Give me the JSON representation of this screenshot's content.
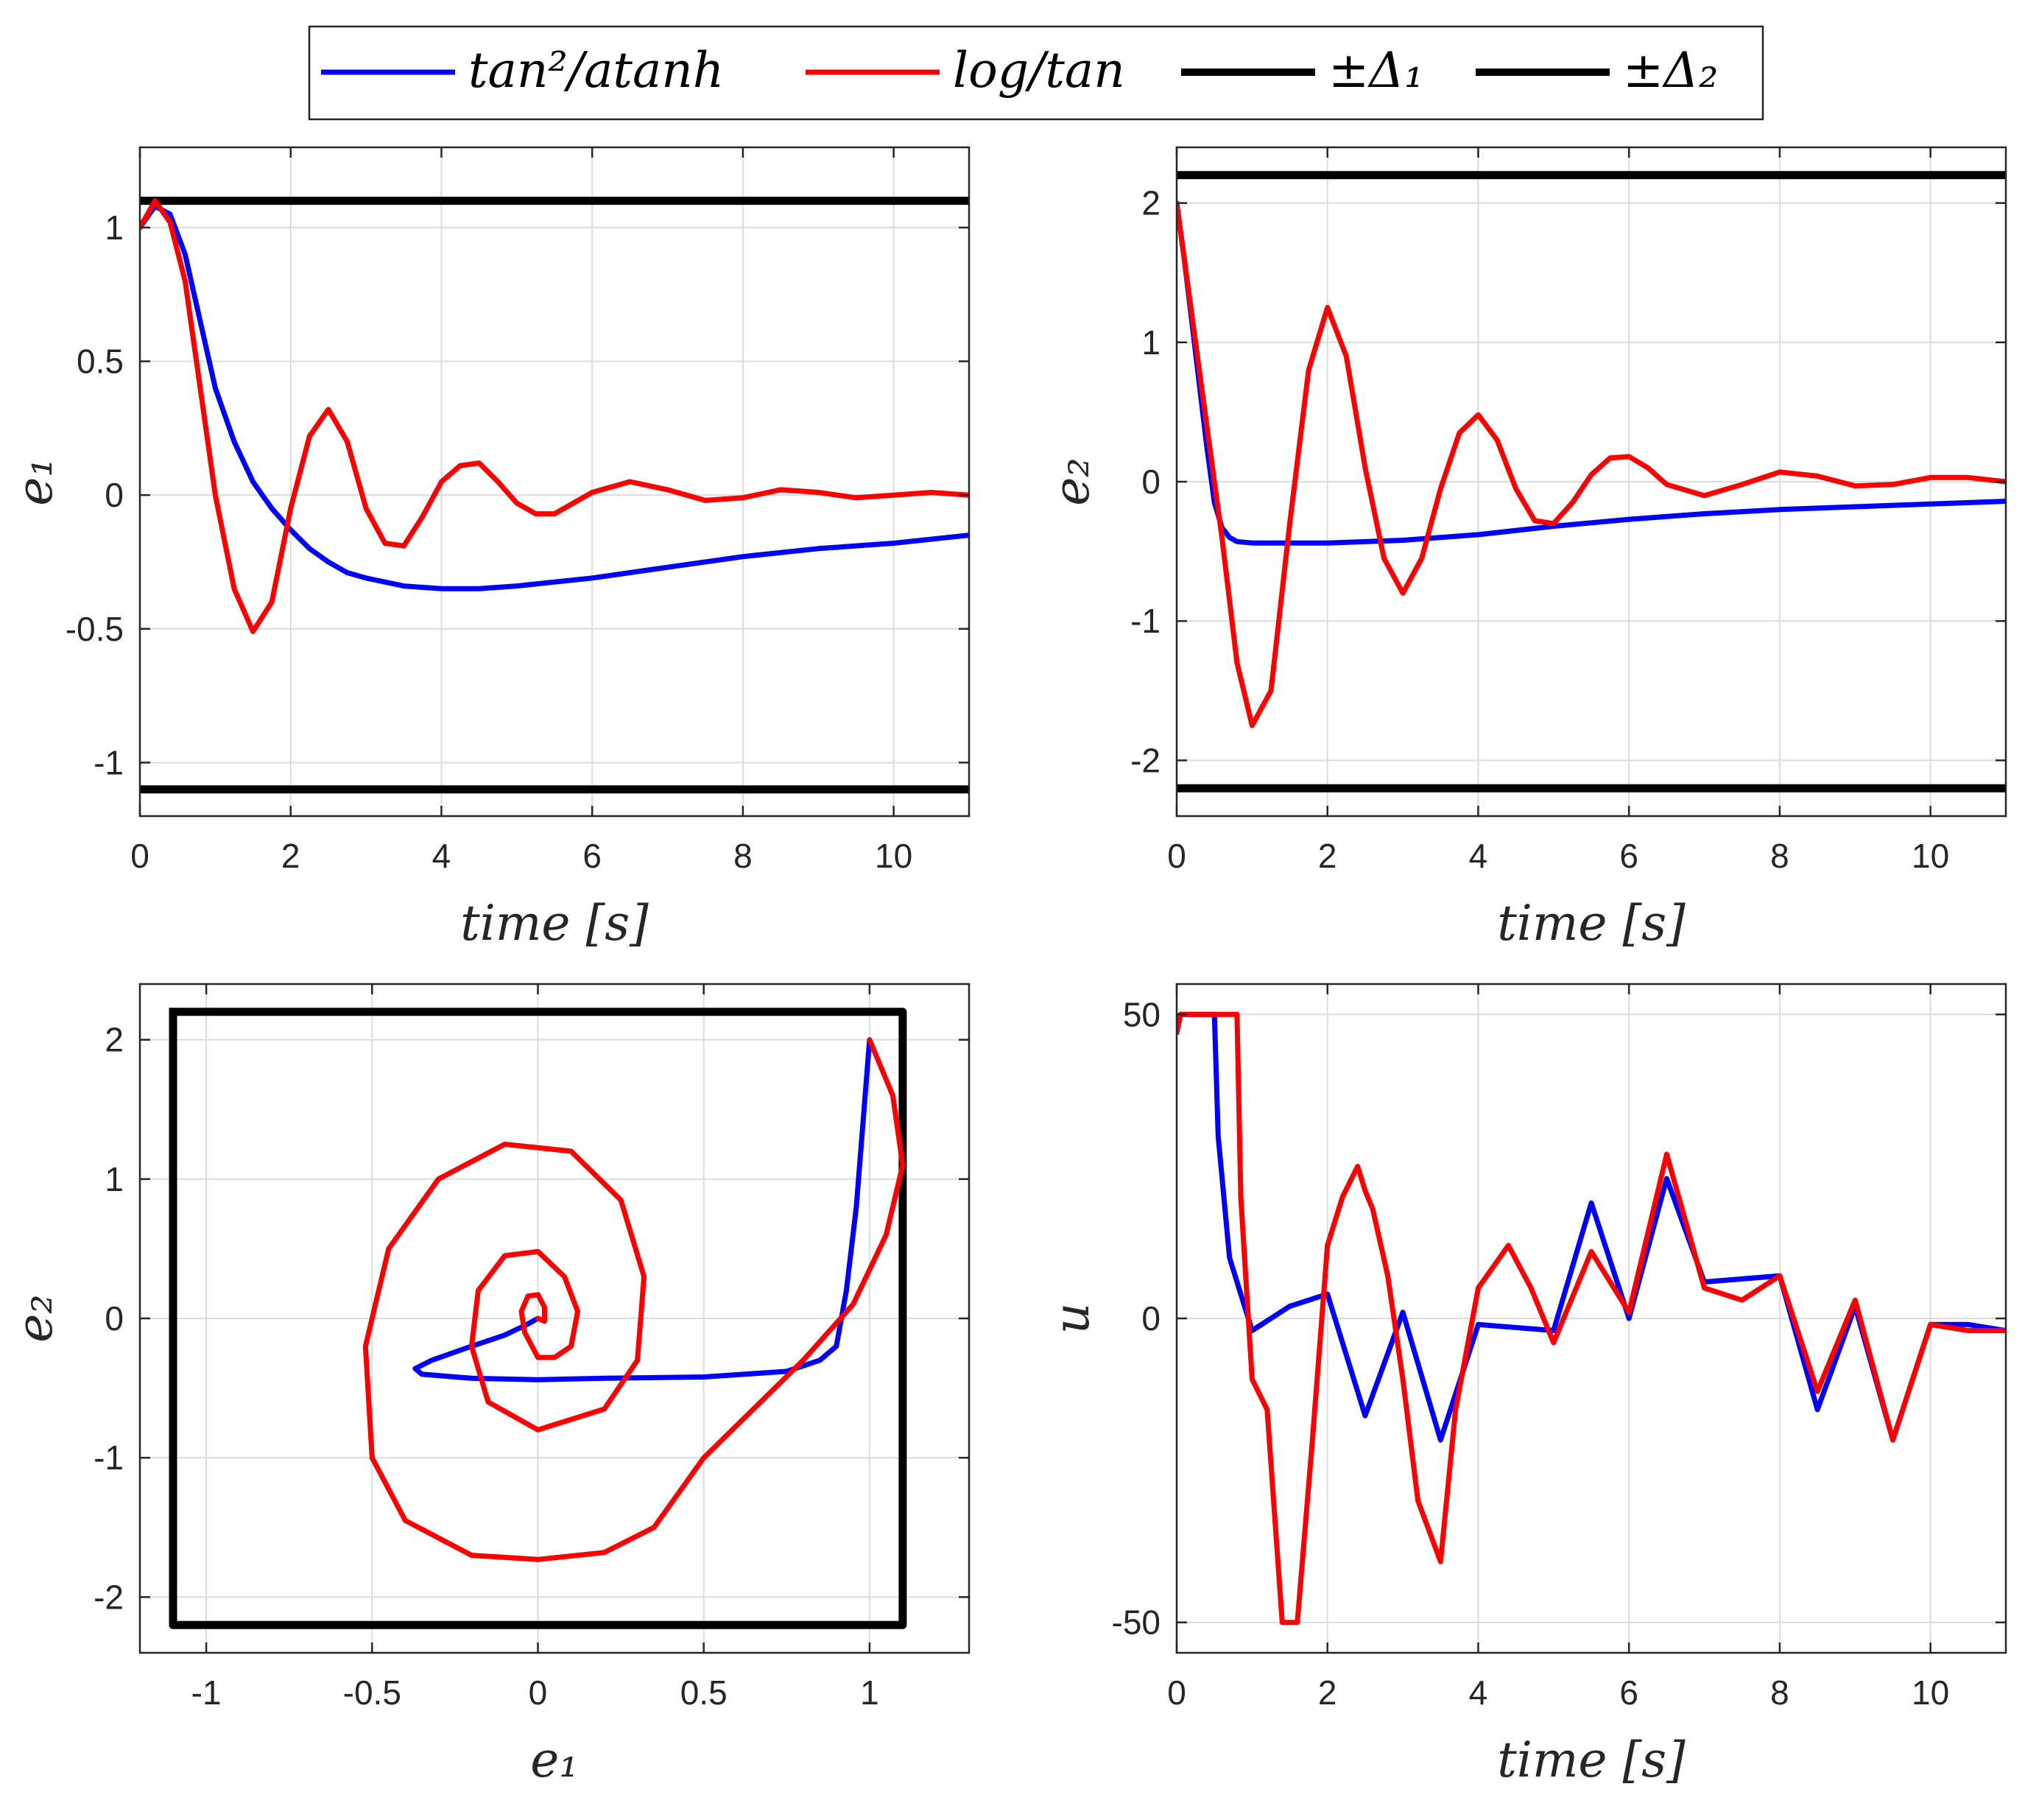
{
  "colors": {
    "blue": "#0000ff",
    "red": "#ff0000",
    "black": "#000000"
  },
  "legend": {
    "entries": [
      {
        "label": "tan²/atanh",
        "color": "#0000ff"
      },
      {
        "label": "log/tan",
        "color": "#ff0000"
      },
      {
        "label": "±Δ₁",
        "color": "#000000"
      },
      {
        "label": "±Δ₂",
        "color": "#000000"
      }
    ]
  },
  "chart_data": [
    {
      "id": "e1",
      "type": "line",
      "xlabel": "time [s]",
      "ylabel": "e₁",
      "xlim": [
        0,
        11
      ],
      "ylim": [
        -1.2,
        1.3
      ],
      "xticks": [
        0,
        2,
        4,
        6,
        8,
        10
      ],
      "yticks": [
        -1,
        -0.5,
        0,
        0.5,
        1
      ],
      "grid": true,
      "series": [
        {
          "name": "bound +Δ₁",
          "color": "#000000",
          "x": [
            0,
            11
          ],
          "y": [
            1.1,
            1.1
          ]
        },
        {
          "name": "bound −Δ₁",
          "color": "#000000",
          "x": [
            0,
            11
          ],
          "y": [
            -1.1,
            -1.1
          ]
        },
        {
          "name": "tan²/atanh",
          "color": "#0000ff",
          "x": [
            0,
            0.2,
            0.4,
            0.6,
            0.8,
            1.0,
            1.25,
            1.5,
            1.75,
            2.0,
            2.25,
            2.5,
            2.75,
            3.0,
            3.5,
            4.0,
            4.5,
            5.0,
            6.0,
            7.0,
            8.0,
            9.0,
            10.0,
            11.0
          ],
          "y": [
            1.0,
            1.08,
            1.05,
            0.9,
            0.65,
            0.4,
            0.2,
            0.05,
            -0.05,
            -0.13,
            -0.2,
            -0.25,
            -0.29,
            -0.31,
            -0.34,
            -0.35,
            -0.35,
            -0.34,
            -0.31,
            -0.27,
            -0.23,
            -0.2,
            -0.18,
            -0.15
          ]
        },
        {
          "name": "log/tan",
          "color": "#ff0000",
          "x": [
            0,
            0.2,
            0.4,
            0.6,
            0.8,
            1.0,
            1.25,
            1.5,
            1.75,
            2.0,
            2.25,
            2.5,
            2.75,
            3.0,
            3.25,
            3.5,
            3.75,
            4.0,
            4.25,
            4.5,
            4.75,
            5.0,
            5.25,
            5.5,
            5.75,
            6.0,
            6.5,
            7.0,
            7.5,
            8.0,
            8.5,
            9.0,
            9.5,
            10.0,
            10.5,
            11.0
          ],
          "y": [
            1.0,
            1.1,
            1.02,
            0.8,
            0.4,
            0.0,
            -0.35,
            -0.51,
            -0.4,
            -0.05,
            0.22,
            0.32,
            0.2,
            -0.05,
            -0.18,
            -0.19,
            -0.08,
            0.05,
            0.11,
            0.12,
            0.05,
            -0.03,
            -0.07,
            -0.07,
            -0.03,
            0.01,
            0.05,
            0.02,
            -0.02,
            -0.01,
            0.02,
            0.01,
            -0.01,
            0.0,
            0.01,
            0.0
          ]
        }
      ]
    },
    {
      "id": "e2",
      "type": "line",
      "xlabel": "time [s]",
      "ylabel": "e₂",
      "xlim": [
        0,
        11
      ],
      "ylim": [
        -2.4,
        2.4
      ],
      "xticks": [
        0,
        2,
        4,
        6,
        8,
        10
      ],
      "yticks": [
        -2,
        -1,
        0,
        1,
        2
      ],
      "grid": true,
      "series": [
        {
          "name": "bound +Δ₂",
          "color": "#000000",
          "x": [
            0,
            11
          ],
          "y": [
            2.2,
            2.2
          ]
        },
        {
          "name": "bound −Δ₂",
          "color": "#000000",
          "x": [
            0,
            11
          ],
          "y": [
            -2.2,
            -2.2
          ]
        },
        {
          "name": "tan²/atanh",
          "color": "#0000ff",
          "x": [
            0,
            0.1,
            0.2,
            0.3,
            0.4,
            0.5,
            0.6,
            0.7,
            0.8,
            1.0,
            1.5,
            2.0,
            3.0,
            4.0,
            5.0,
            6.0,
            7.0,
            8.0,
            9.0,
            10.0,
            11.0
          ],
          "y": [
            2.0,
            1.6,
            1.15,
            0.7,
            0.25,
            -0.15,
            -0.33,
            -0.4,
            -0.43,
            -0.44,
            -0.44,
            -0.44,
            -0.42,
            -0.38,
            -0.32,
            -0.27,
            -0.23,
            -0.2,
            -0.18,
            -0.16,
            -0.14
          ]
        },
        {
          "name": "log/tan",
          "color": "#ff0000",
          "x": [
            0,
            0.2,
            0.4,
            0.6,
            0.8,
            1.0,
            1.25,
            1.5,
            1.75,
            2.0,
            2.25,
            2.5,
            2.75,
            3.0,
            3.25,
            3.5,
            3.75,
            4.0,
            4.25,
            4.5,
            4.75,
            5.0,
            5.25,
            5.5,
            5.75,
            6.0,
            6.25,
            6.5,
            7.0,
            7.5,
            8.0,
            8.5,
            9.0,
            9.5,
            10.0,
            10.5,
            11.0
          ],
          "y": [
            2.0,
            1.2,
            0.4,
            -0.4,
            -1.3,
            -1.75,
            -1.5,
            -0.3,
            0.8,
            1.25,
            0.9,
            0.1,
            -0.55,
            -0.8,
            -0.55,
            -0.05,
            0.35,
            0.48,
            0.3,
            -0.05,
            -0.28,
            -0.3,
            -0.15,
            0.05,
            0.17,
            0.18,
            0.1,
            -0.02,
            -0.1,
            -0.02,
            0.07,
            0.04,
            -0.03,
            -0.02,
            0.03,
            0.03,
            0.0
          ]
        }
      ]
    },
    {
      "id": "phase",
      "type": "line",
      "xlabel": "e₁",
      "ylabel": "e₂",
      "xlim": [
        -1.2,
        1.3
      ],
      "ylim": [
        -2.4,
        2.4
      ],
      "xticks": [
        -1,
        -0.5,
        0,
        0.5,
        1
      ],
      "yticks": [
        -2,
        -1,
        0,
        1,
        2
      ],
      "grid": true,
      "series": [
        {
          "name": "bound box",
          "color": "#000000",
          "x": [
            -1.1,
            1.1,
            1.1,
            -1.1,
            -1.1
          ],
          "y": [
            2.2,
            2.2,
            -2.2,
            -2.2,
            2.2
          ]
        },
        {
          "name": "tan²/atanh",
          "color": "#0000ff",
          "x": [
            1.0,
            0.98,
            0.96,
            0.93,
            0.9,
            0.85,
            0.75,
            0.5,
            0.2,
            0.0,
            -0.2,
            -0.35,
            -0.37,
            -0.32,
            -0.2,
            -0.1,
            -0.03,
            0.0
          ],
          "y": [
            2.0,
            1.4,
            0.8,
            0.2,
            -0.2,
            -0.3,
            -0.38,
            -0.42,
            -0.43,
            -0.44,
            -0.43,
            -0.4,
            -0.36,
            -0.3,
            -0.2,
            -0.12,
            -0.04,
            0.0
          ]
        },
        {
          "name": "log/tan",
          "color": "#ff0000",
          "x": [
            1.0,
            1.07,
            1.1,
            1.05,
            0.95,
            0.8,
            0.5,
            0.35,
            0.2,
            0.0,
            -0.2,
            -0.4,
            -0.5,
            -0.52,
            -0.45,
            -0.3,
            -0.1,
            0.1,
            0.25,
            0.32,
            0.3,
            0.2,
            0.0,
            -0.15,
            -0.2,
            -0.18,
            -0.1,
            0.0,
            0.08,
            0.12,
            0.1,
            0.05,
            0.0,
            -0.04,
            -0.05,
            -0.03,
            0.0,
            0.02,
            0.02,
            0.0
          ],
          "y": [
            2.0,
            1.6,
            1.1,
            0.6,
            0.1,
            -0.3,
            -1.0,
            -1.5,
            -1.68,
            -1.73,
            -1.7,
            -1.45,
            -1.0,
            -0.2,
            0.5,
            1.0,
            1.25,
            1.2,
            0.85,
            0.3,
            -0.3,
            -0.65,
            -0.8,
            -0.6,
            -0.2,
            0.2,
            0.45,
            0.48,
            0.3,
            0.05,
            -0.2,
            -0.28,
            -0.28,
            -0.1,
            0.05,
            0.16,
            0.17,
            0.08,
            -0.02,
            0.0
          ]
        }
      ]
    },
    {
      "id": "u",
      "type": "line",
      "xlabel": "time [s]",
      "ylabel": "u",
      "xlim": [
        0,
        11
      ],
      "ylim": [
        -55,
        55
      ],
      "xticks": [
        0,
        2,
        4,
        6,
        8,
        10
      ],
      "yticks": [
        -50,
        0,
        50
      ],
      "grid": true,
      "series": [
        {
          "name": "tan²/atanh",
          "color": "#0000ff",
          "x": [
            0,
            0.05,
            0.5,
            0.55,
            0.7,
            0.9,
            1.0,
            1.5,
            2.0,
            2.5,
            3.0,
            3.5,
            4.0,
            5.0,
            5.5,
            6.0,
            6.5,
            7.0,
            8.0,
            8.5,
            9.0,
            9.5,
            10.0,
            10.5,
            11.0
          ],
          "y": [
            47,
            50,
            50,
            30,
            10,
            2,
            -2,
            2,
            4,
            -16,
            1,
            -20,
            -1,
            -2,
            19,
            0,
            23,
            6,
            7,
            -15,
            2,
            -20,
            -1,
            -1,
            -2
          ]
        },
        {
          "name": "log/tan",
          "color": "#ff0000",
          "x": [
            0,
            0.05,
            0.8,
            0.85,
            1.0,
            1.2,
            1.4,
            1.6,
            1.8,
            2.0,
            2.2,
            2.4,
            2.5,
            2.6,
            2.8,
            3.0,
            3.2,
            3.5,
            3.7,
            4.0,
            4.4,
            4.7,
            5.0,
            5.5,
            6.0,
            6.5,
            7.0,
            7.5,
            8.0,
            8.5,
            9.0,
            9.5,
            10.0,
            10.5,
            11.0
          ],
          "y": [
            47,
            50,
            50,
            20,
            -10,
            -15,
            -50,
            -50,
            -20,
            12,
            20,
            25,
            21,
            18,
            7,
            -10,
            -30,
            -40,
            -15,
            5,
            12,
            5,
            -4,
            11,
            1,
            27,
            5,
            3,
            7,
            -12,
            3,
            -20,
            -1,
            -2,
            -2
          ]
        }
      ]
    }
  ]
}
